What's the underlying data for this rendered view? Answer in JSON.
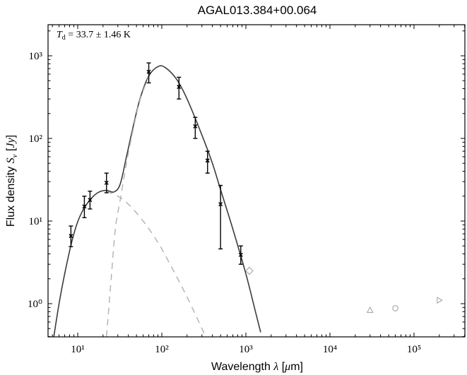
{
  "chart_data": {
    "type": "scatter",
    "title": "AGAL013.384+00.064",
    "xlabel": "Wavelength λ [μm]",
    "ylabel": "Flux density S_ν [Jy]",
    "xscale": "log",
    "yscale": "log",
    "xlim": [
      5,
      400000
    ],
    "ylim": [
      0.4,
      2500
    ],
    "x_tick_labels": [
      "10^1",
      "10^2",
      "10^3",
      "10^4",
      "10^5"
    ],
    "y_tick_labels": [
      "10^0",
      "10^1",
      "10^2",
      "10^3"
    ],
    "annotation": "T_d = 33.7 ± 1.46 K",
    "grid": false,
    "series": [
      {
        "name": "measured fluxes",
        "style": "black x markers with error bars",
        "points": [
          {
            "x": 8.3,
            "y": 6.6,
            "ylo": 4.9,
            "yhi": 8.7
          },
          {
            "x": 12,
            "y": 15,
            "ylo": 11,
            "yhi": 20
          },
          {
            "x": 14,
            "y": 18,
            "ylo": 14,
            "yhi": 23
          },
          {
            "x": 22,
            "y": 29,
            "ylo": 22,
            "yhi": 38
          },
          {
            "x": 70,
            "y": 640,
            "ylo": 470,
            "yhi": 820
          },
          {
            "x": 160,
            "y": 420,
            "ylo": 300,
            "yhi": 550
          },
          {
            "x": 250,
            "y": 140,
            "ylo": 100,
            "yhi": 180
          },
          {
            "x": 350,
            "y": 54,
            "ylo": 38,
            "yhi": 70
          },
          {
            "x": 500,
            "y": 16,
            "ylo": 4.6,
            "yhi": 27
          },
          {
            "x": 870,
            "y": 3.9,
            "ylo": 3.0,
            "yhi": 5.0
          }
        ]
      },
      {
        "name": "other measurements",
        "style": "grey open markers",
        "points": [
          {
            "x": 1100,
            "y": 2.5,
            "marker": "diamond"
          },
          {
            "x": 30000,
            "y": 0.83,
            "marker": "triangle-up"
          },
          {
            "x": 60000,
            "y": 0.88,
            "marker": "circle"
          },
          {
            "x": 200000,
            "y": 1.1,
            "marker": "triangle-right"
          }
        ]
      },
      {
        "name": "total SED fit",
        "style": "solid dark grey line",
        "points": [
          [
            5.2,
            0.4
          ],
          [
            6,
            1.0
          ],
          [
            7,
            2.3
          ],
          [
            8.5,
            5.6
          ],
          [
            10,
            9.8
          ],
          [
            12,
            14.5
          ],
          [
            15,
            19.5
          ],
          [
            18,
            22.5
          ],
          [
            22,
            23.5
          ],
          [
            27,
            22.5
          ],
          [
            32,
            28
          ],
          [
            38,
            60
          ],
          [
            45,
            130
          ],
          [
            55,
            300
          ],
          [
            70,
            570
          ],
          [
            90,
            740
          ],
          [
            110,
            720
          ],
          [
            150,
            520
          ],
          [
            200,
            300
          ],
          [
            300,
            110
          ],
          [
            400,
            50
          ],
          [
            500,
            24
          ],
          [
            700,
            8
          ],
          [
            1000,
            2.3
          ],
          [
            1300,
            0.8
          ],
          [
            1500,
            0.45
          ]
        ]
      },
      {
        "name": "cold component",
        "style": "dashed light grey",
        "points": [
          [
            22,
            0.4
          ],
          [
            25,
            2
          ],
          [
            28,
            8
          ],
          [
            32,
            18
          ],
          [
            38,
            50
          ],
          [
            45,
            120
          ],
          [
            55,
            290
          ],
          [
            70,
            560
          ]
        ]
      },
      {
        "name": "warm component",
        "style": "dashed light grey",
        "points": [
          [
            22,
            23
          ],
          [
            30,
            20
          ],
          [
            40,
            16
          ],
          [
            60,
            10
          ],
          [
            90,
            5.5
          ],
          [
            130,
            2.8
          ],
          [
            200,
            1.2
          ],
          [
            300,
            0.5
          ],
          [
            330,
            0.4
          ]
        ]
      }
    ]
  }
}
